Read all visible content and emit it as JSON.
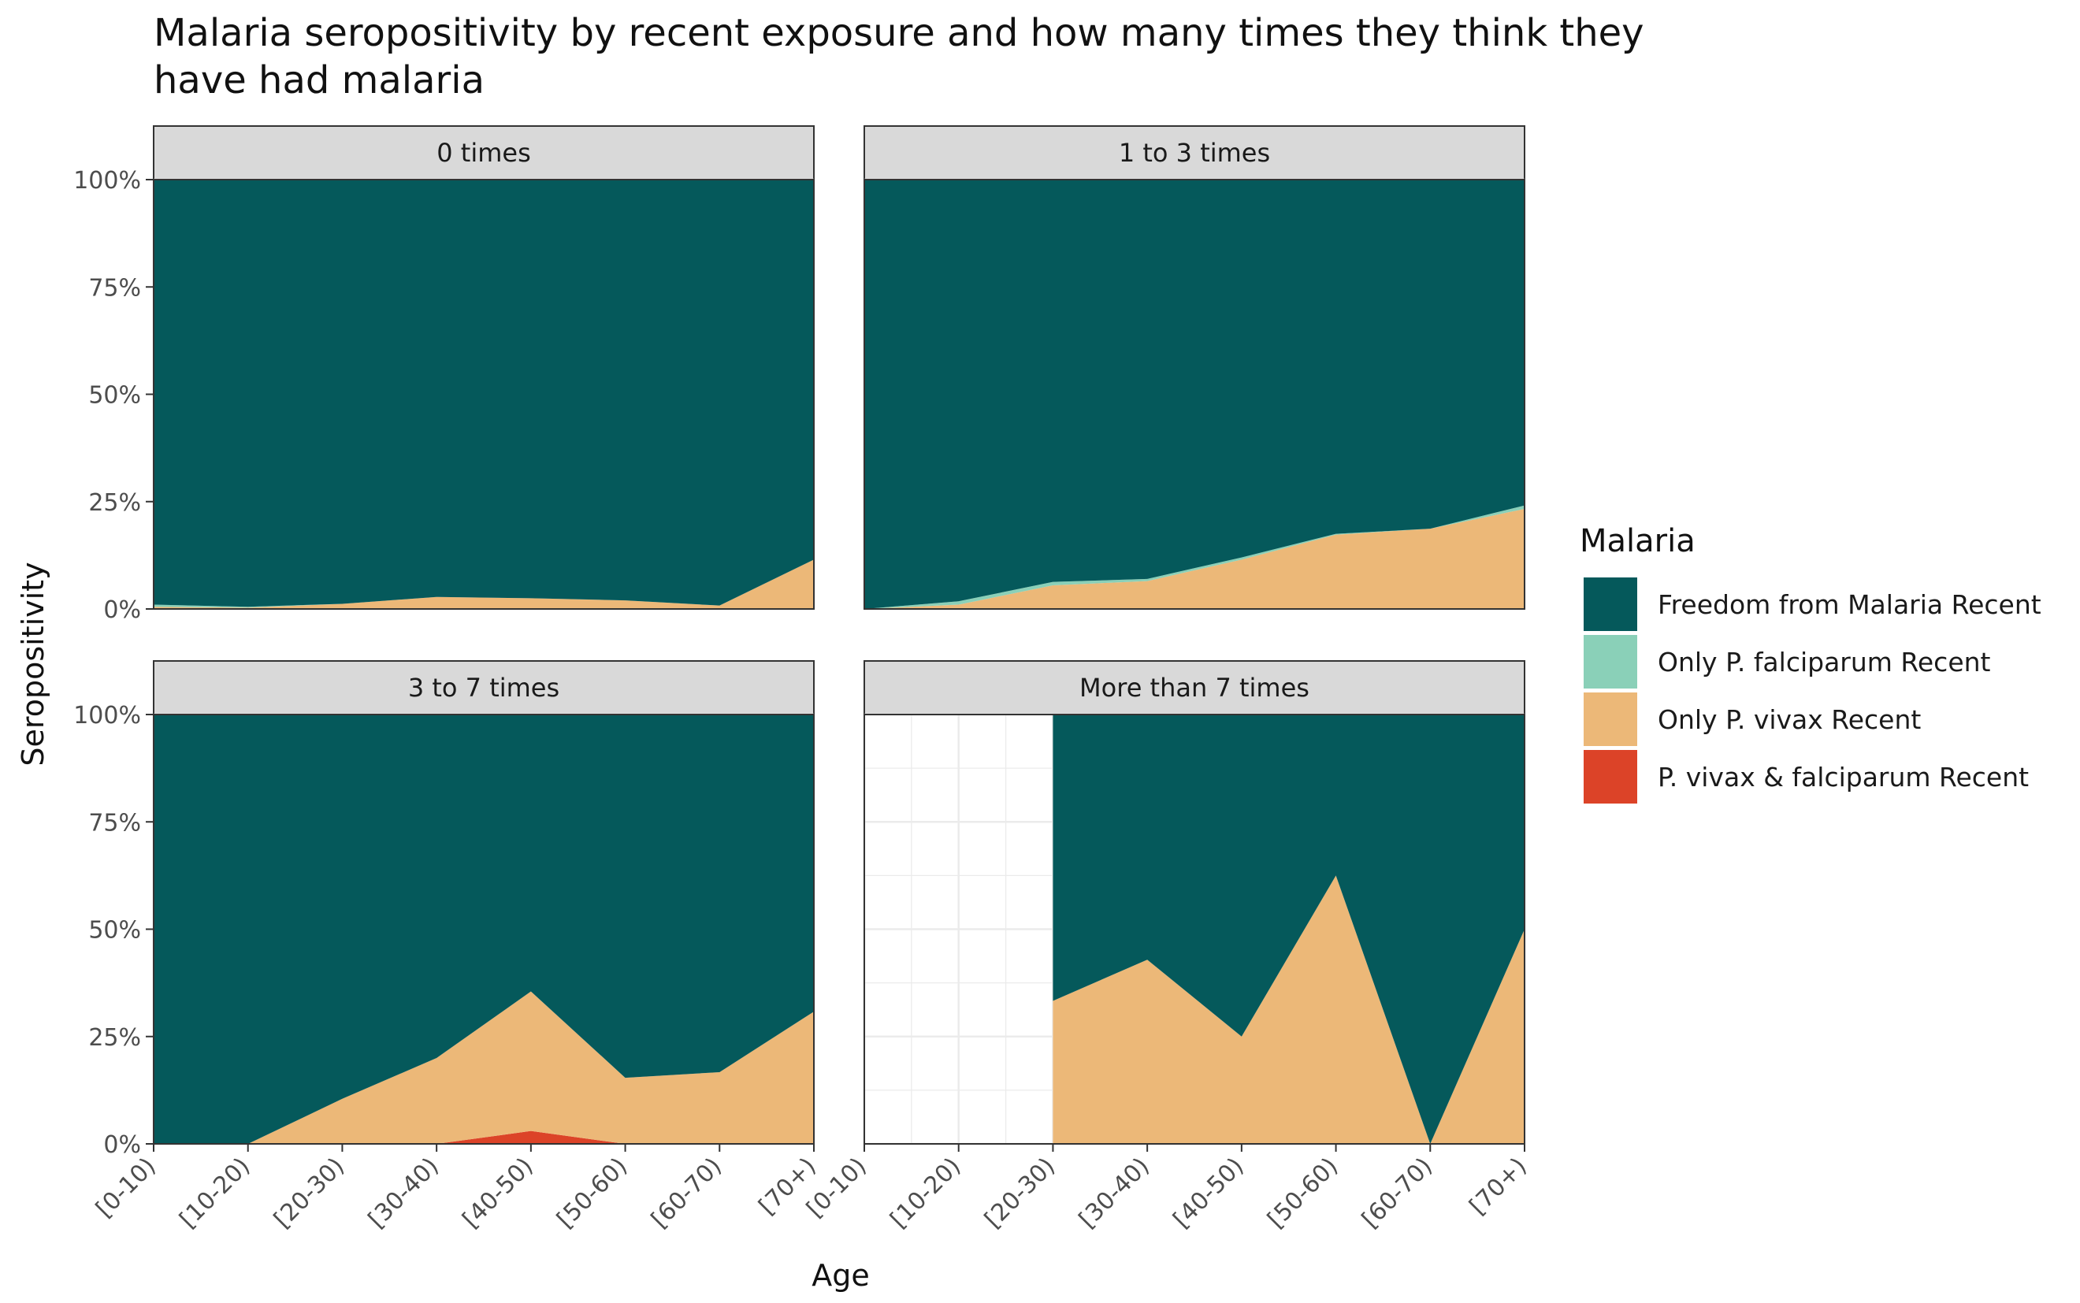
{
  "chart_data": {
    "type": "area",
    "stacked": true,
    "percent_scale": true,
    "title": "Malaria seropositivity by recent exposure and how many times they think they have had malaria",
    "title_lines": [
      "Malaria seropositivity by recent exposure and how many times they think they",
      "have had malaria"
    ],
    "xlabel": "Age",
    "ylabel": "Seropositivity",
    "ylim": [
      0,
      100
    ],
    "grid": false,
    "legend_position": "right",
    "categories": [
      "[0-10)",
      "[10-20)",
      "[20-30)",
      "[30-40)",
      "[40-50)",
      "[50-60)",
      "[60-70)",
      "[70+)"
    ],
    "y_ticks": [
      {
        "value": 0,
        "label": "0%"
      },
      {
        "value": 25,
        "label": "25%"
      },
      {
        "value": 50,
        "label": "50%"
      },
      {
        "value": 75,
        "label": "75%"
      },
      {
        "value": 100,
        "label": "100%"
      }
    ],
    "legend": {
      "title": "Malaria",
      "items": [
        {
          "name": "Freedom from Malaria Recent",
          "color": "#05595b"
        },
        {
          "name": "Only P. falciparum Recent",
          "color": "#8ad0b8"
        },
        {
          "name": "Only P. vivax Recent",
          "color": "#ecb878"
        },
        {
          "name": "P. vivax & falciparum Recent",
          "color": "#dc4328"
        }
      ]
    },
    "panels": [
      {
        "strip": "0 times",
        "series": [
          {
            "name": "P. vivax & falciparum Recent",
            "values": [
              0,
              0,
              0,
              0,
              0,
              0,
              0,
              0
            ]
          },
          {
            "name": "Only P. vivax Recent",
            "values": [
              0.5,
              0.3,
              1.2,
              2.8,
              2.5,
              2.0,
              0.8,
              11.5
            ]
          },
          {
            "name": "Only P. falciparum Recent",
            "values": [
              0.5,
              0.2,
              0,
              0,
              0,
              0,
              0,
              0
            ]
          },
          {
            "name": "Freedom from Malaria Recent",
            "values": [
              99,
              99.5,
              98.8,
              97.2,
              97.5,
              98.0,
              99.2,
              88.5
            ]
          }
        ]
      },
      {
        "strip": "1 to 3 times",
        "series": [
          {
            "name": "P. vivax & falciparum Recent",
            "values": [
              0,
              0,
              0,
              0,
              0,
              0,
              0,
              0
            ]
          },
          {
            "name": "Only P. vivax Recent",
            "values": [
              0,
              1.0,
              5.5,
              6.5,
              11.5,
              17.3,
              18.7,
              23.3
            ]
          },
          {
            "name": "Only P. falciparum Recent",
            "values": [
              0,
              0.8,
              0.8,
              0.5,
              0.5,
              0.2,
              0,
              0.8
            ]
          },
          {
            "name": "Freedom from Malaria Recent",
            "values": [
              100,
              98.2,
              93.7,
              93.0,
              88.0,
              82.5,
              81.3,
              75.9
            ]
          }
        ]
      },
      {
        "strip": "3 to 7 times",
        "series": [
          {
            "name": "P. vivax & falciparum Recent",
            "values": [
              0,
              0,
              0,
              0,
              3.0,
              0,
              0,
              0
            ]
          },
          {
            "name": "Only P. vivax Recent",
            "values": [
              0,
              0,
              10.5,
              20.0,
              32.5,
              15.4,
              16.7,
              30.8
            ]
          },
          {
            "name": "Only P. falciparum Recent",
            "values": [
              0,
              0,
              0,
              0,
              0,
              0,
              0,
              0
            ]
          },
          {
            "name": "Freedom from Malaria Recent",
            "values": [
              100,
              100,
              89.5,
              80.0,
              64.5,
              84.6,
              83.3,
              69.2
            ]
          }
        ]
      },
      {
        "strip": "More than 7 times",
        "series": [
          {
            "name": "P. vivax & falciparum Recent",
            "values": [
              null,
              null,
              0,
              0,
              0,
              0,
              0,
              0
            ]
          },
          {
            "name": "Only P. vivax Recent",
            "values": [
              null,
              null,
              33.3,
              42.9,
              25.0,
              62.5,
              0,
              50.0
            ]
          },
          {
            "name": "Only P. falciparum Recent",
            "values": [
              null,
              null,
              0,
              0,
              0,
              0,
              0,
              0
            ]
          },
          {
            "name": "Freedom from Malaria Recent",
            "values": [
              null,
              null,
              66.7,
              57.1,
              75.0,
              37.5,
              100,
              50.0
            ]
          }
        ]
      }
    ]
  }
}
